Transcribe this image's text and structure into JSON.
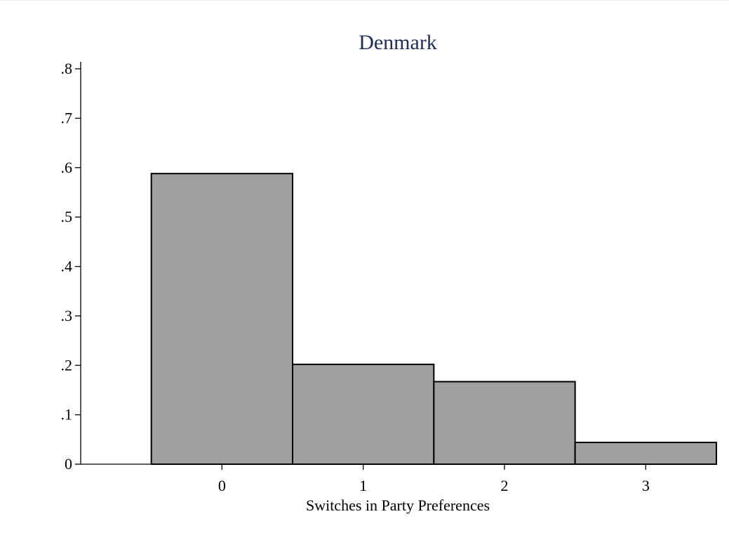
{
  "chart_data": {
    "type": "bar",
    "title": "Denmark",
    "xlabel": "Switches in Party Preferences",
    "ylabel": "",
    "categories": [
      "0",
      "1",
      "2",
      "3"
    ],
    "values": [
      0.588,
      0.202,
      0.167,
      0.044
    ],
    "ylim": [
      0,
      0.8
    ],
    "yticks": [
      0,
      0.1,
      0.2,
      0.3,
      0.4,
      0.5,
      0.6,
      0.7,
      0.8
    ],
    "ytick_labels": [
      "0",
      ".1",
      ".2",
      ".3",
      ".4",
      ".5",
      ".6",
      ".7",
      ".8"
    ],
    "xlim": [
      -1,
      3.5
    ],
    "grid": false,
    "colors": {
      "bar_fill": "#a0a0a0",
      "bar_stroke": "#000000",
      "title": "#1f2d57",
      "axis": "#000000"
    }
  }
}
